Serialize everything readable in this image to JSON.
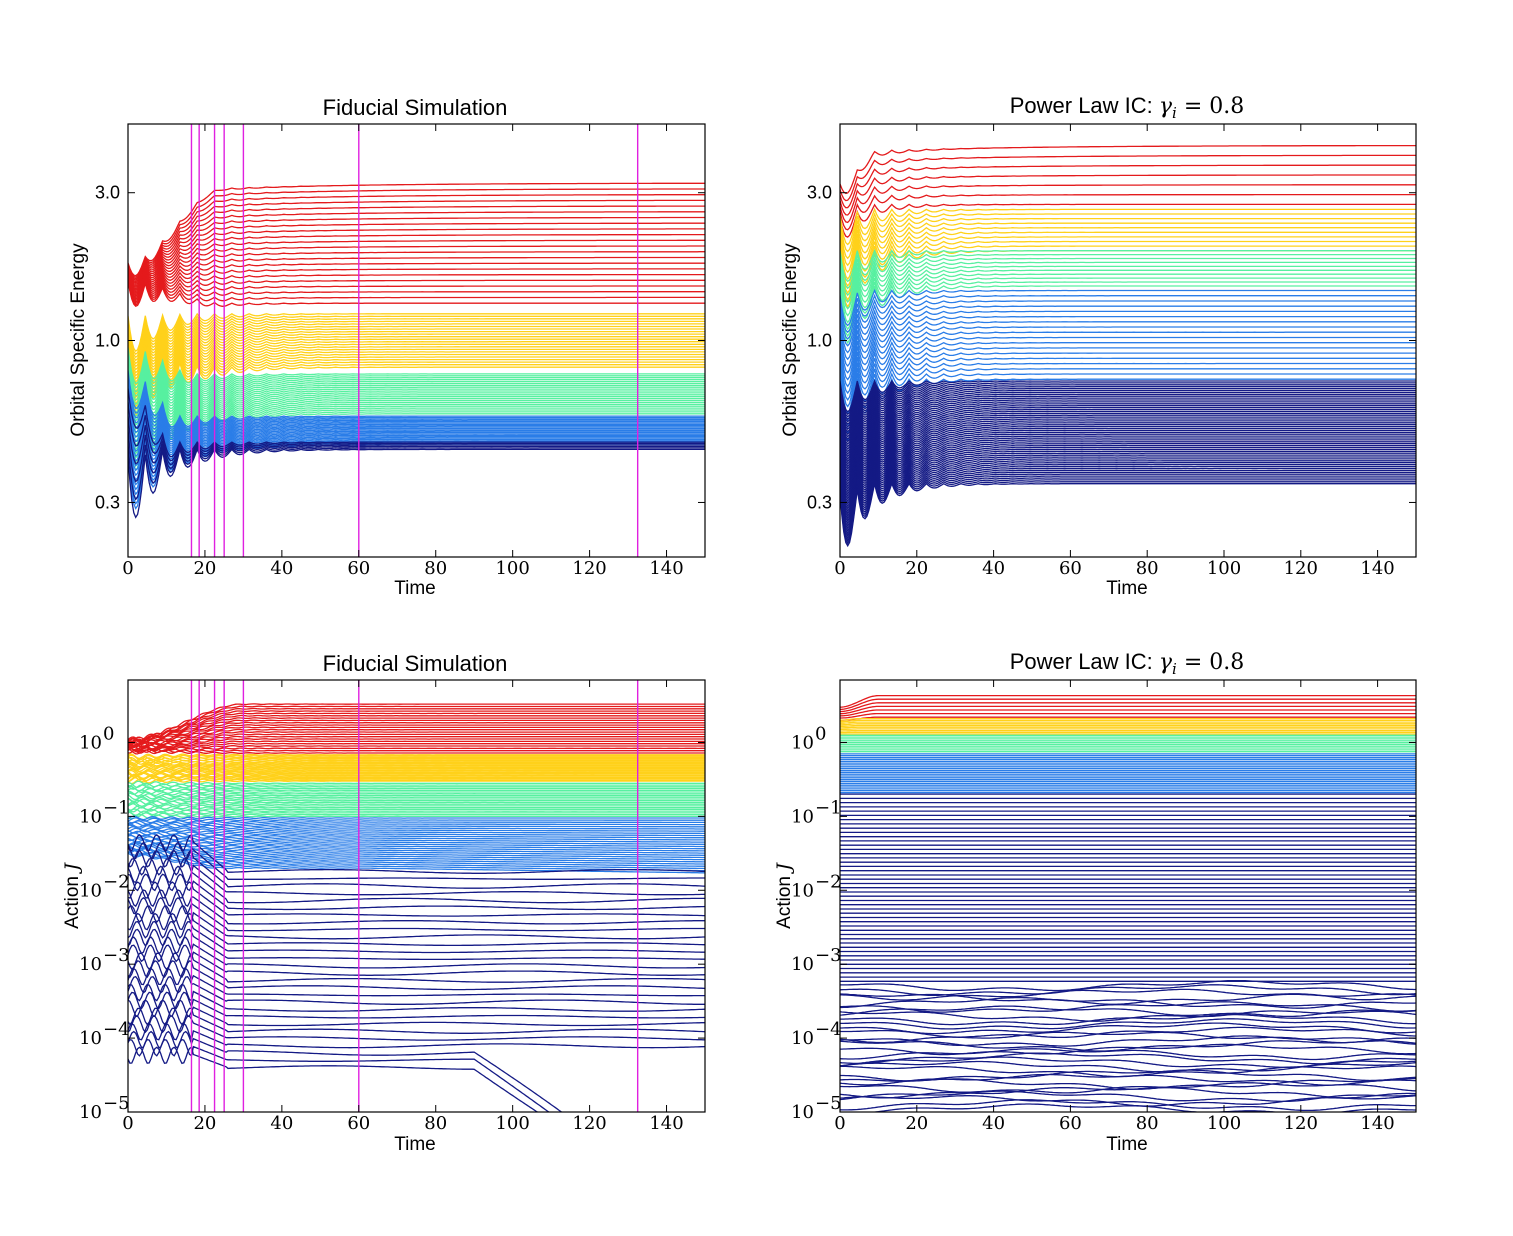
{
  "colors": {
    "red": "#e41a1c",
    "gold": "#ffd11a",
    "mint": "#57f0a0",
    "blue": "#2a7de8",
    "navy": "#141a85",
    "marker": "#e020e0"
  },
  "chart_data": [
    {
      "id": "energy-fiducial",
      "type": "line",
      "title": "Fiducial Simulation",
      "xlabel": "Time",
      "ylabel": "Orbital Specific Energy",
      "yscale": "log",
      "xlim": [
        0,
        150
      ],
      "ylim": [
        0.2,
        5.0
      ],
      "xticks": [
        0,
        20,
        40,
        60,
        80,
        100,
        120,
        140
      ],
      "xtick_labels": [
        "0",
        "20",
        "40",
        "60",
        "80",
        "100",
        "120",
        "140"
      ],
      "yticks": [
        0.3,
        1.0,
        3.0
      ],
      "ytick_labels": [
        "0.3",
        "1.0",
        "3.0"
      ],
      "vlines": [
        16.5,
        18.5,
        22.5,
        25,
        30,
        60,
        132.5
      ],
      "groups": [
        {
          "color": "red",
          "count": 22,
          "lo": 1.32,
          "hi": 3.1,
          "start_lo": 1.55,
          "start_hi": 1.78,
          "settle": 25
        },
        {
          "color": "gold",
          "count": 22,
          "lo": 0.82,
          "hi": 1.22,
          "start_lo": 0.9,
          "start_hi": 1.2,
          "settle": 22
        },
        {
          "color": "mint",
          "count": 22,
          "lo": 0.58,
          "hi": 0.78,
          "start_lo": 0.6,
          "start_hi": 0.95,
          "settle": 18
        },
        {
          "color": "blue",
          "count": 22,
          "lo": 0.46,
          "hi": 0.57,
          "start_lo": 0.45,
          "start_hi": 0.8,
          "settle": 14
        },
        {
          "color": "navy",
          "count": 6,
          "lo": 0.445,
          "hi": 0.47,
          "start_lo": 0.42,
          "start_hi": 0.7,
          "settle": 12
        }
      ],
      "oscillation": {
        "amplitude": 0.55,
        "period": 4.5,
        "decay": 11
      }
    },
    {
      "id": "energy-powerlaw",
      "type": "line",
      "title_prefix": "Power Law IC: ",
      "title_math_symbol": "γ",
      "title_math_sub": "i",
      "title_math_rest": " = 0.8",
      "xlabel": "Time",
      "ylabel": "Orbital Specific Energy",
      "yscale": "log",
      "xlim": [
        0,
        150
      ],
      "ylim": [
        0.2,
        5.0
      ],
      "xticks": [
        0,
        20,
        40,
        60,
        80,
        100,
        120,
        140
      ],
      "xtick_labels": [
        "0",
        "20",
        "40",
        "60",
        "80",
        "100",
        "120",
        "140"
      ],
      "yticks": [
        0.3,
        1.0,
        3.0
      ],
      "ytick_labels": [
        "0.3",
        "1.0",
        "3.0"
      ],
      "vlines": [],
      "groups": [
        {
          "color": "red",
          "count": 7,
          "lo": 2.75,
          "hi": 4.1,
          "start_lo": 2.5,
          "start_hi": 3.2,
          "settle": 10
        },
        {
          "color": "gold",
          "count": 10,
          "lo": 1.95,
          "hi": 2.65,
          "start_lo": 1.9,
          "start_hi": 2.55,
          "settle": 8
        },
        {
          "color": "mint",
          "count": 10,
          "lo": 1.5,
          "hi": 1.95,
          "start_lo": 1.45,
          "start_hi": 1.95,
          "settle": 8
        },
        {
          "color": "blue",
          "count": 18,
          "lo": 0.75,
          "hi": 1.45,
          "start_lo": 0.7,
          "start_hi": 1.4,
          "settle": 9
        },
        {
          "color": "navy",
          "count": 55,
          "lo": 0.345,
          "hi": 0.74,
          "start_lo": 0.32,
          "start_hi": 0.74,
          "settle": 10
        }
      ],
      "oscillation": {
        "amplitude": 0.5,
        "period": 4.5,
        "decay": 9
      }
    },
    {
      "id": "action-fiducial",
      "type": "line",
      "title": "Fiducial Simulation",
      "xlabel": "Time",
      "ylabel_prefix": "Action ",
      "ylabel_math": "J",
      "yscale": "log",
      "xlim": [
        0,
        150
      ],
      "ylim": [
        1e-05,
        7.0
      ],
      "xticks": [
        0,
        20,
        40,
        60,
        80,
        100,
        120,
        140
      ],
      "xtick_labels": [
        "0",
        "20",
        "40",
        "60",
        "80",
        "100",
        "120",
        "140"
      ],
      "yticks": [
        1e-05,
        0.0001,
        0.001,
        0.01,
        0.1,
        1
      ],
      "ytick_base": [
        "10",
        "10",
        "10",
        "10",
        "10",
        "10"
      ],
      "ytick_exp": [
        "−5",
        "−4",
        "−3",
        "−2",
        "−1",
        "0"
      ],
      "vlines": [
        16.5,
        18.5,
        22.5,
        25,
        30,
        60,
        132.5
      ],
      "groups": [
        {
          "color": "red",
          "count": 22,
          "lo": 0.72,
          "hi": 3.3,
          "start_lo": 0.75,
          "start_hi": 1.1,
          "settle": 30
        },
        {
          "color": "gold",
          "count": 22,
          "lo": 0.3,
          "hi": 0.68,
          "start_lo": 0.3,
          "start_hi": 0.65,
          "settle": 20
        },
        {
          "color": "mint",
          "count": 20,
          "lo": 0.1,
          "hi": 0.28,
          "start_lo": 0.1,
          "start_hi": 0.28,
          "settle": 20
        },
        {
          "color": "blue",
          "count": 26,
          "lo": 0.02,
          "hi": 0.095,
          "start_lo": 0.03,
          "start_hi": 0.095,
          "settle": 25
        },
        {
          "color": "navy",
          "count": 28,
          "lo": 4e-05,
          "hi": 0.018,
          "start_lo": 6e-05,
          "start_hi": 0.045,
          "settle": 25
        }
      ]
    },
    {
      "id": "action-powerlaw",
      "type": "line",
      "title_prefix": "Power Law IC: ",
      "title_math_symbol": "γ",
      "title_math_sub": "i",
      "title_math_rest": " = 0.8",
      "xlabel": "Time",
      "ylabel_prefix": "Action ",
      "ylabel_math": "J",
      "yscale": "log",
      "xlim": [
        0,
        150
      ],
      "ylim": [
        1e-05,
        7.0
      ],
      "xticks": [
        0,
        20,
        40,
        60,
        80,
        100,
        120,
        140
      ],
      "xtick_labels": [
        "0",
        "20",
        "40",
        "60",
        "80",
        "100",
        "120",
        "140"
      ],
      "yticks": [
        1e-05,
        0.0001,
        0.001,
        0.01,
        0.1,
        1
      ],
      "ytick_base": [
        "10",
        "10",
        "10",
        "10",
        "10",
        "10"
      ],
      "ytick_exp": [
        "−5",
        "−4",
        "−3",
        "−2",
        "−1",
        "0"
      ],
      "vlines": [],
      "groups": [
        {
          "color": "red",
          "count": 7,
          "lo": 2.2,
          "hi": 4.3,
          "start_lo": 2.0,
          "start_hi": 3.0,
          "settle": 10
        },
        {
          "color": "gold",
          "count": 10,
          "lo": 1.3,
          "hi": 2.1,
          "start_lo": 1.3,
          "start_hi": 2.0,
          "settle": 5
        },
        {
          "color": "mint",
          "count": 10,
          "lo": 0.75,
          "hi": 1.25,
          "start_lo": 0.75,
          "start_hi": 1.25,
          "settle": 5
        },
        {
          "color": "blue",
          "count": 22,
          "lo": 0.21,
          "hi": 0.7,
          "start_lo": 0.21,
          "start_hi": 0.7,
          "settle": 5
        },
        {
          "color": "navy",
          "count": 75,
          "lo": 1.1e-05,
          "hi": 0.2,
          "start_lo": 1.1e-05,
          "start_hi": 0.2,
          "settle": 5
        }
      ]
    }
  ]
}
